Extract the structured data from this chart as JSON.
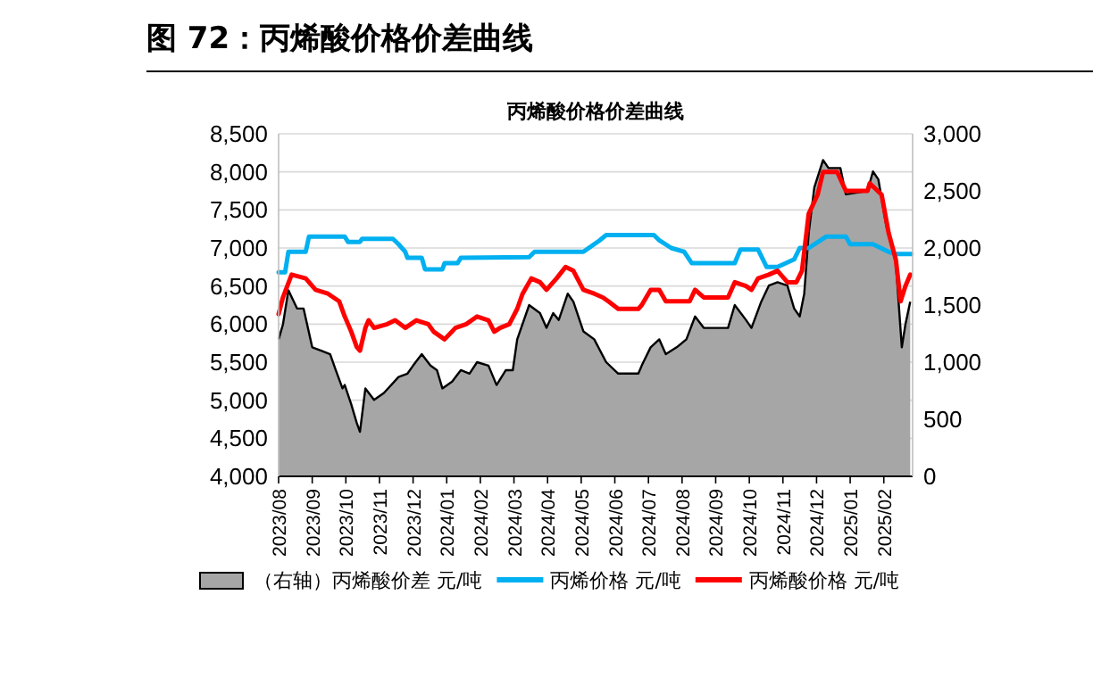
{
  "chart_data": {
    "type": "line",
    "title": "图 72：丙烯酸价格价差曲线",
    "subtitle": "丙烯酸价格价差曲线",
    "xlim": [
      "2023-08-01",
      "2025-02-25"
    ],
    "xticks": [
      {
        "value": "2023-08-01",
        "label": "2023/08"
      },
      {
        "value": "2023-09-01",
        "label": "2023/09"
      },
      {
        "value": "2023-10-01",
        "label": "2023/10"
      },
      {
        "value": "2023-11-01",
        "label": "2023/11"
      },
      {
        "value": "2023-12-01",
        "label": "2023/12"
      },
      {
        "value": "2024-01-01",
        "label": "2024/01"
      },
      {
        "value": "2024-02-01",
        "label": "2024/02"
      },
      {
        "value": "2024-03-01",
        "label": "2024/03"
      },
      {
        "value": "2024-04-01",
        "label": "2024/04"
      },
      {
        "value": "2024-05-01",
        "label": "2024/05"
      },
      {
        "value": "2024-06-01",
        "label": "2024/06"
      },
      {
        "value": "2024-07-01",
        "label": "2024/07"
      },
      {
        "value": "2024-08-01",
        "label": "2024/08"
      },
      {
        "value": "2024-09-01",
        "label": "2024/09"
      },
      {
        "value": "2024-10-01",
        "label": "2024/10"
      },
      {
        "value": "2024-11-01",
        "label": "2024/11"
      },
      {
        "value": "2024-12-01",
        "label": "2024/12"
      },
      {
        "value": "2025-01-01",
        "label": "2025/01"
      },
      {
        "value": "2025-02-01",
        "label": "2025/02"
      }
    ],
    "ylim": [
      4000,
      8500
    ],
    "yticks": [
      {
        "value": 4000,
        "label": "4,000"
      },
      {
        "value": 4500,
        "label": "4,500"
      },
      {
        "value": 5000,
        "label": "5,000"
      },
      {
        "value": 5500,
        "label": "5,500"
      },
      {
        "value": 6000,
        "label": "6,000"
      },
      {
        "value": 6500,
        "label": "6,500"
      },
      {
        "value": 7000,
        "label": "7,000"
      },
      {
        "value": 7500,
        "label": "7,500"
      },
      {
        "value": 8000,
        "label": "8,000"
      },
      {
        "value": 8500,
        "label": "8,500"
      }
    ],
    "y2lim": [
      0,
      3000
    ],
    "y2ticks": [
      0,
      500,
      {
        "value": 1000,
        "label": "1,000"
      },
      {
        "value": 1500,
        "label": "1,500"
      },
      {
        "value": 2000,
        "label": "2,000"
      },
      {
        "value": 2500,
        "label": "2,500"
      },
      {
        "value": 3000,
        "label": "3,000"
      }
    ],
    "grid": "y",
    "legend": "bottom",
    "marker": "none",
    "line_style": "solid",
    "series": [
      {
        "name": "（右轴）丙烯酸价差 元/吨",
        "type": "area",
        "axis": "y2",
        "color": "#a6a6a6",
        "x": [
          "2023-08-01",
          "2023-08-05",
          "2023-08-10",
          "2023-08-18",
          "2023-08-24",
          "2023-09-01",
          "2023-09-09",
          "2023-09-17",
          "2023-09-22",
          "2023-09-28",
          "2023-09-30",
          "2023-10-06",
          "2023-10-11",
          "2023-10-14",
          "2023-10-19",
          "2023-10-27",
          "2023-11-05",
          "2023-11-18",
          "2023-11-26",
          "2023-12-01",
          "2023-12-09",
          "2023-12-17",
          "2023-12-23",
          "2023-12-28",
          "2024-01-06",
          "2024-01-14",
          "2024-01-22",
          "2024-01-29",
          "2024-02-08",
          "2024-02-15",
          "2024-02-23",
          "2024-02-29",
          "2024-03-04",
          "2024-03-15",
          "2024-03-25",
          "2024-03-31",
          "2024-04-06",
          "2024-04-11",
          "2024-04-19",
          "2024-04-24",
          "2024-05-03",
          "2024-05-13",
          "2024-05-24",
          "2024-06-04",
          "2024-06-22",
          "2024-06-25",
          "2024-07-03",
          "2024-07-11",
          "2024-07-17",
          "2024-07-27",
          "2024-08-05",
          "2024-08-13",
          "2024-08-21",
          "2024-09-12",
          "2024-09-18",
          "2024-09-28",
          "2024-10-03",
          "2024-10-12",
          "2024-10-19",
          "2024-10-27",
          "2024-11-05",
          "2024-11-11",
          "2024-11-16",
          "2024-11-20",
          "2024-11-24",
          "2024-11-29",
          "2024-12-07",
          "2024-12-12",
          "2024-12-23",
          "2024-12-28",
          "2025-01-17",
          "2025-01-22",
          "2025-01-27",
          "2025-02-03",
          "2025-02-11",
          "2025-02-16",
          "2025-02-19",
          "2025-02-23"
        ],
        "values": [
          1200,
          1330,
          1630,
          1470,
          1470,
          1130,
          1100,
          1070,
          930,
          770,
          800,
          630,
          470,
          390,
          770,
          670,
          730,
          870,
          900,
          970,
          1070,
          970,
          930,
          770,
          830,
          930,
          900,
          1000,
          970,
          800,
          930,
          930,
          1200,
          1500,
          1430,
          1300,
          1430,
          1370,
          1600,
          1530,
          1270,
          1200,
          1000,
          900,
          900,
          970,
          1130,
          1200,
          1070,
          1130,
          1200,
          1400,
          1300,
          1300,
          1500,
          1370,
          1300,
          1530,
          1670,
          1700,
          1670,
          1470,
          1400,
          1600,
          2130,
          2530,
          2770,
          2700,
          2700,
          2470,
          2500,
          2670,
          2600,
          2200,
          1870,
          1130,
          1330,
          1530
        ]
      },
      {
        "name": "丙烯价格 元/吨",
        "color": "#00b0f0",
        "x": [
          "2023-08-01",
          "2023-08-07",
          "2023-08-10",
          "2023-08-26",
          "2023-08-29",
          "2023-09-30",
          "2023-10-03",
          "2023-10-14",
          "2023-10-16",
          "2023-11-13",
          "2023-11-18",
          "2023-11-24",
          "2023-11-26",
          "2023-12-09",
          "2023-12-12",
          "2023-12-28",
          "2023-12-30",
          "2024-01-11",
          "2024-01-14",
          "2024-03-15",
          "2024-03-20",
          "2024-05-03",
          "2024-05-08",
          "2024-05-18",
          "2024-05-24",
          "2024-07-06",
          "2024-07-11",
          "2024-07-22",
          "2024-08-03",
          "2024-08-10",
          "2024-09-18",
          "2024-09-23",
          "2024-10-09",
          "2024-10-17",
          "2024-10-27",
          "2024-11-11",
          "2024-11-16",
          "2024-11-24",
          "2024-12-10",
          "2024-12-28",
          "2025-01-01",
          "2025-01-22",
          "2025-02-05",
          "2025-02-11",
          "2025-02-24"
        ],
        "values": [
          6680,
          6680,
          6950,
          6950,
          7150,
          7150,
          7080,
          7080,
          7120,
          7120,
          7050,
          6950,
          6870,
          6870,
          6720,
          6720,
          6800,
          6800,
          6870,
          6880,
          6950,
          6950,
          7000,
          7100,
          7170,
          7170,
          7100,
          7000,
          6950,
          6800,
          6800,
          6980,
          6980,
          6750,
          6750,
          6850,
          7000,
          7000,
          7150,
          7150,
          7050,
          7050,
          6950,
          6920,
          6920
        ]
      },
      {
        "name": "丙烯酸价格 元/吨",
        "color": "#ff0000",
        "x": [
          "2023-08-01",
          "2023-08-05",
          "2023-08-13",
          "2023-08-26",
          "2023-09-04",
          "2023-09-15",
          "2023-09-25",
          "2023-09-30",
          "2023-10-06",
          "2023-10-11",
          "2023-10-14",
          "2023-10-19",
          "2023-10-22",
          "2023-10-27",
          "2023-11-08",
          "2023-11-15",
          "2023-11-24",
          "2023-12-04",
          "2023-12-15",
          "2023-12-20",
          "2023-12-30",
          "2024-01-09",
          "2024-01-19",
          "2024-01-29",
          "2024-02-08",
          "2024-02-13",
          "2024-02-18",
          "2024-02-26",
          "2024-03-04",
          "2024-03-09",
          "2024-03-17",
          "2024-03-25",
          "2024-03-31",
          "2024-04-09",
          "2024-04-17",
          "2024-04-24",
          "2024-05-03",
          "2024-05-13",
          "2024-05-21",
          "2024-05-26",
          "2024-06-04",
          "2024-06-22",
          "2024-06-25",
          "2024-07-03",
          "2024-07-11",
          "2024-07-17",
          "2024-08-08",
          "2024-08-13",
          "2024-08-21",
          "2024-09-12",
          "2024-09-18",
          "2024-09-28",
          "2024-10-03",
          "2024-10-09",
          "2024-10-19",
          "2024-10-27",
          "2024-11-05",
          "2024-11-13",
          "2024-11-18",
          "2024-11-24",
          "2024-12-02",
          "2024-12-07",
          "2024-12-20",
          "2024-12-28",
          "2025-01-17",
          "2025-01-19",
          "2025-01-30",
          "2025-02-05",
          "2025-02-11",
          "2025-02-15",
          "2025-02-19",
          "2025-02-23"
        ],
        "values": [
          6130,
          6350,
          6650,
          6600,
          6450,
          6400,
          6300,
          6100,
          5900,
          5700,
          5650,
          5950,
          6050,
          5950,
          6000,
          6050,
          5950,
          6050,
          6000,
          5900,
          5800,
          5950,
          6000,
          6100,
          6050,
          5900,
          5950,
          6000,
          6200,
          6400,
          6600,
          6550,
          6450,
          6600,
          6750,
          6700,
          6450,
          6400,
          6350,
          6300,
          6200,
          6200,
          6250,
          6450,
          6450,
          6300,
          6300,
          6450,
          6350,
          6350,
          6550,
          6500,
          6450,
          6600,
          6650,
          6700,
          6550,
          6550,
          6700,
          7450,
          7700,
          8000,
          8000,
          7750,
          7750,
          7850,
          7700,
          7200,
          6850,
          6300,
          6500,
          6650
        ]
      }
    ]
  }
}
